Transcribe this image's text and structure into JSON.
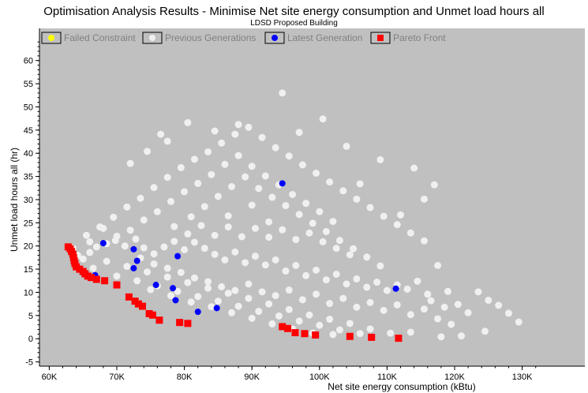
{
  "chart_data": {
    "type": "scatter",
    "title": "Optimisation Analysis Results - Minimise Net site energy consumption and Unmet load hours all",
    "subtitle": "LDSD Proposed Building",
    "xlabel": "Net site energy consumption (kBtu)",
    "ylabel": "Unmet load hours all (hr)",
    "xlim": [
      52000,
      132000
    ],
    "ylim": [
      -6,
      64
    ],
    "x_ticks": [
      60000,
      70000,
      80000,
      90000,
      100000,
      110000,
      120000,
      130000
    ],
    "x_tick_labels": [
      "60K",
      "70K",
      "80K",
      "90K",
      "100K",
      "110K",
      "120K",
      "130K"
    ],
    "y_ticks": [
      -5,
      0,
      5,
      10,
      15,
      20,
      25,
      30,
      35,
      40,
      45,
      50,
      55,
      60
    ],
    "y_tick_labels": [
      "-5",
      "0",
      "5",
      "10",
      "15",
      "20",
      "25",
      "30",
      "35",
      "40",
      "45",
      "50",
      "55",
      "60"
    ],
    "grid": false,
    "legend_position": "top",
    "colors": {
      "background": "#c0c0c0",
      "failed": "#ffff00",
      "previous": "#f0f0f0",
      "latest": "#0000ff",
      "pareto": "#ff0000"
    },
    "series": [
      {
        "name": "Failed Constraint",
        "marker": "circle",
        "points": []
      },
      {
        "name": "Previous Generations",
        "marker": "circle",
        "points": [
          [
            63500,
            19.5
          ],
          [
            64200,
            18
          ],
          [
            65000,
            17.2
          ],
          [
            66000,
            18.6
          ],
          [
            67000,
            19.8
          ],
          [
            68500,
            20.5
          ],
          [
            69800,
            21.2
          ],
          [
            71200,
            20
          ],
          [
            72800,
            21.5
          ],
          [
            74000,
            19.6
          ],
          [
            75500,
            18.3
          ],
          [
            77000,
            19.8
          ],
          [
            78500,
            21
          ],
          [
            80000,
            19.2
          ],
          [
            81500,
            20.8
          ],
          [
            83000,
            19.5
          ],
          [
            84500,
            18.2
          ],
          [
            86000,
            17
          ],
          [
            87500,
            18.7
          ],
          [
            89000,
            16.4
          ],
          [
            90500,
            17.8
          ],
          [
            92000,
            15.9
          ],
          [
            93500,
            17
          ],
          [
            95000,
            14.6
          ],
          [
            96500,
            15.8
          ],
          [
            98000,
            13.6
          ],
          [
            99500,
            14.8
          ],
          [
            101000,
            12.7
          ],
          [
            102500,
            13.9
          ],
          [
            104000,
            11.8
          ],
          [
            105500,
            12.9
          ],
          [
            107000,
            11.1
          ],
          [
            108500,
            12.2
          ],
          [
            110000,
            10.4
          ],
          [
            111500,
            11.6
          ],
          [
            113000,
            10.7
          ],
          [
            114500,
            12.4
          ],
          [
            116000,
            9.6
          ],
          [
            117500,
            15.8
          ],
          [
            119000,
            10.2
          ],
          [
            120500,
            7.4
          ],
          [
            122000,
            5.6
          ],
          [
            123500,
            10.1
          ],
          [
            125000,
            8.3
          ],
          [
            126500,
            7.2
          ],
          [
            128000,
            5.5
          ],
          [
            129500,
            3.6
          ],
          [
            124500,
            1.6
          ],
          [
            121000,
            0.6
          ],
          [
            118000,
            0.4
          ],
          [
            113500,
            1.4
          ],
          [
            110500,
            1.2
          ],
          [
            107500,
            2.1
          ],
          [
            104500,
            3.3
          ],
          [
            101500,
            4.2
          ],
          [
            98500,
            5.1
          ],
          [
            95500,
            6.3
          ],
          [
            92500,
            7.5
          ],
          [
            89500,
            8.7
          ],
          [
            86500,
            9.8
          ],
          [
            83500,
            10.9
          ],
          [
            80500,
            12.1
          ],
          [
            77500,
            13.3
          ],
          [
            74500,
            14.4
          ],
          [
            71500,
            15.6
          ],
          [
            68500,
            16.7
          ],
          [
            66500,
            15.2
          ],
          [
            70000,
            13.5
          ],
          [
            73000,
            12.5
          ],
          [
            76000,
            11.4
          ],
          [
            79000,
            10.2
          ],
          [
            82000,
            9.1
          ],
          [
            85000,
            8.1
          ],
          [
            88000,
            7
          ],
          [
            91000,
            5.9
          ],
          [
            94000,
            4.9
          ],
          [
            97000,
            3.8
          ],
          [
            100000,
            2.9
          ],
          [
            103000,
            1.9
          ],
          [
            106000,
            1.1
          ],
          [
            65500,
            22.3
          ],
          [
            67500,
            24.1
          ],
          [
            69500,
            26.2
          ],
          [
            71500,
            28.4
          ],
          [
            73500,
            30.3
          ],
          [
            75500,
            32.6
          ],
          [
            77500,
            34.8
          ],
          [
            79500,
            36.9
          ],
          [
            81500,
            38.7
          ],
          [
            83500,
            40.3
          ],
          [
            85500,
            42.2
          ],
          [
            87500,
            44.1
          ],
          [
            89500,
            45.6
          ],
          [
            91500,
            43.4
          ],
          [
            93500,
            41.2
          ],
          [
            95500,
            39.4
          ],
          [
            97500,
            37.5
          ],
          [
            99500,
            35.7
          ],
          [
            101500,
            33.8
          ],
          [
            103500,
            31.9
          ],
          [
            105500,
            30.1
          ],
          [
            107500,
            28.3
          ],
          [
            109500,
            26.4
          ],
          [
            111500,
            24.6
          ],
          [
            113500,
            22.8
          ],
          [
            115500,
            21.1
          ],
          [
            76000,
            27.4
          ],
          [
            78000,
            29.6
          ],
          [
            80000,
            31.7
          ],
          [
            82000,
            33.5
          ],
          [
            84000,
            35.4
          ],
          [
            86000,
            37.6
          ],
          [
            88000,
            39.5
          ],
          [
            90000,
            37.2
          ],
          [
            92000,
            35.1
          ],
          [
            94000,
            33.2
          ],
          [
            96000,
            31.1
          ],
          [
            98000,
            29.2
          ],
          [
            100000,
            27.4
          ],
          [
            102000,
            25.3
          ],
          [
            74000,
            25.6
          ],
          [
            72000,
            23.4
          ],
          [
            70000,
            22.1
          ],
          [
            68000,
            23.8
          ],
          [
            66000,
            20.9
          ],
          [
            81000,
            26.3
          ],
          [
            83000,
            28.5
          ],
          [
            85000,
            30.7
          ],
          [
            87000,
            32.8
          ],
          [
            89000,
            34.9
          ],
          [
            91000,
            32.4
          ],
          [
            93000,
            30.5
          ],
          [
            95000,
            28.7
          ],
          [
            97000,
            26.8
          ],
          [
            99000,
            24.9
          ],
          [
            101000,
            23.1
          ],
          [
            103000,
            21.2
          ],
          [
            105000,
            19.4
          ],
          [
            107000,
            17.6
          ],
          [
            109000,
            15.7
          ],
          [
            94500,
            53
          ],
          [
            100500,
            47.4
          ],
          [
            97000,
            44.5
          ],
          [
            88000,
            46.2
          ],
          [
            84500,
            44.8
          ],
          [
            80500,
            46.6
          ],
          [
            77500,
            42.6
          ],
          [
            74500,
            40.4
          ],
          [
            72000,
            37.8
          ],
          [
            117000,
            33.2
          ],
          [
            114000,
            36.8
          ],
          [
            109000,
            38.6
          ],
          [
            106000,
            33.4
          ],
          [
            115500,
            30.1
          ],
          [
            112000,
            26.7
          ],
          [
            104000,
            41.5
          ],
          [
            76500,
            44.1
          ],
          [
            86500,
            26.5
          ],
          [
            90000,
            28.8
          ],
          [
            92500,
            25.2
          ],
          [
            78500,
            24.2
          ],
          [
            80500,
            22.6
          ],
          [
            82500,
            24.4
          ],
          [
            84500,
            22.3
          ],
          [
            86500,
            24.1
          ],
          [
            88500,
            22
          ],
          [
            90500,
            23.8
          ],
          [
            92500,
            21.9
          ],
          [
            94500,
            23.5
          ],
          [
            96500,
            21.4
          ],
          [
            98500,
            22.8
          ],
          [
            100500,
            20.9
          ],
          [
            102500,
            19.5
          ],
          [
            104500,
            18.1
          ],
          [
            73500,
            17.4
          ],
          [
            75500,
            16.1
          ],
          [
            77500,
            15.2
          ],
          [
            79500,
            14.3
          ],
          [
            81500,
            13.1
          ],
          [
            83500,
            12.3
          ],
          [
            85500,
            11.2
          ],
          [
            87500,
            10.4
          ],
          [
            89500,
            11.8
          ],
          [
            91500,
            10.1
          ],
          [
            93500,
            9.3
          ],
          [
            95500,
            10.5
          ],
          [
            97500,
            8.4
          ],
          [
            99500,
            9.6
          ],
          [
            101500,
            7.6
          ],
          [
            103500,
            8.7
          ],
          [
            105500,
            6.8
          ],
          [
            107500,
            7.8
          ],
          [
            109500,
            6.1
          ],
          [
            111500,
            7.3
          ],
          [
            113500,
            5.2
          ],
          [
            115500,
            6.4
          ],
          [
            117500,
            4.3
          ],
          [
            119500,
            3.1
          ],
          [
            118500,
            6.8
          ],
          [
            116500,
            8.2
          ],
          [
            96000,
            2.1
          ],
          [
            99000,
            1.2
          ],
          [
            102000,
            0.9
          ],
          [
            93000,
            3.2
          ],
          [
            90000,
            4.4
          ],
          [
            87000,
            5.6
          ],
          [
            84000,
            6.9
          ],
          [
            81000,
            7.9
          ],
          [
            78000,
            9.3
          ],
          [
            75000,
            10.6
          ]
        ]
      },
      {
        "name": "Latest Generation",
        "marker": "circle",
        "points": [
          [
            94500,
            33.5
          ],
          [
            68000,
            20.6
          ],
          [
            72500,
            19.3
          ],
          [
            79000,
            17.8
          ],
          [
            73000,
            16.8
          ],
          [
            72500,
            15.2
          ],
          [
            66800,
            13.7
          ],
          [
            75800,
            11.6
          ],
          [
            78300,
            10.9
          ],
          [
            111300,
            10.8
          ],
          [
            78700,
            8.3
          ],
          [
            84800,
            6.6
          ],
          [
            82000,
            5.8
          ]
        ]
      },
      {
        "name": "Pareto Front",
        "marker": "square",
        "points": [
          [
            62800,
            19.8
          ],
          [
            63100,
            19.4
          ],
          [
            63300,
            18.8
          ],
          [
            63500,
            18.2
          ],
          [
            63600,
            17.5
          ],
          [
            63700,
            16.8
          ],
          [
            63800,
            16.2
          ],
          [
            64000,
            15.5
          ],
          [
            64500,
            15
          ],
          [
            65000,
            14.5
          ],
          [
            65300,
            14
          ],
          [
            65700,
            13.5
          ],
          [
            66200,
            13.2
          ],
          [
            67000,
            12.8
          ],
          [
            68200,
            12.5
          ],
          [
            70000,
            11.6
          ],
          [
            71800,
            9
          ],
          [
            72700,
            8.1
          ],
          [
            73200,
            7.5
          ],
          [
            73800,
            7
          ],
          [
            74800,
            5.4
          ],
          [
            75300,
            5.1
          ],
          [
            76300,
            4
          ],
          [
            79300,
            3.5
          ],
          [
            80500,
            3.3
          ],
          [
            94500,
            2.6
          ],
          [
            95300,
            2.2
          ],
          [
            96400,
            1.3
          ],
          [
            97800,
            1.1
          ],
          [
            99400,
            0.8
          ],
          [
            104500,
            0.5
          ],
          [
            107700,
            0.3
          ],
          [
            111700,
            0.1
          ]
        ]
      }
    ]
  }
}
